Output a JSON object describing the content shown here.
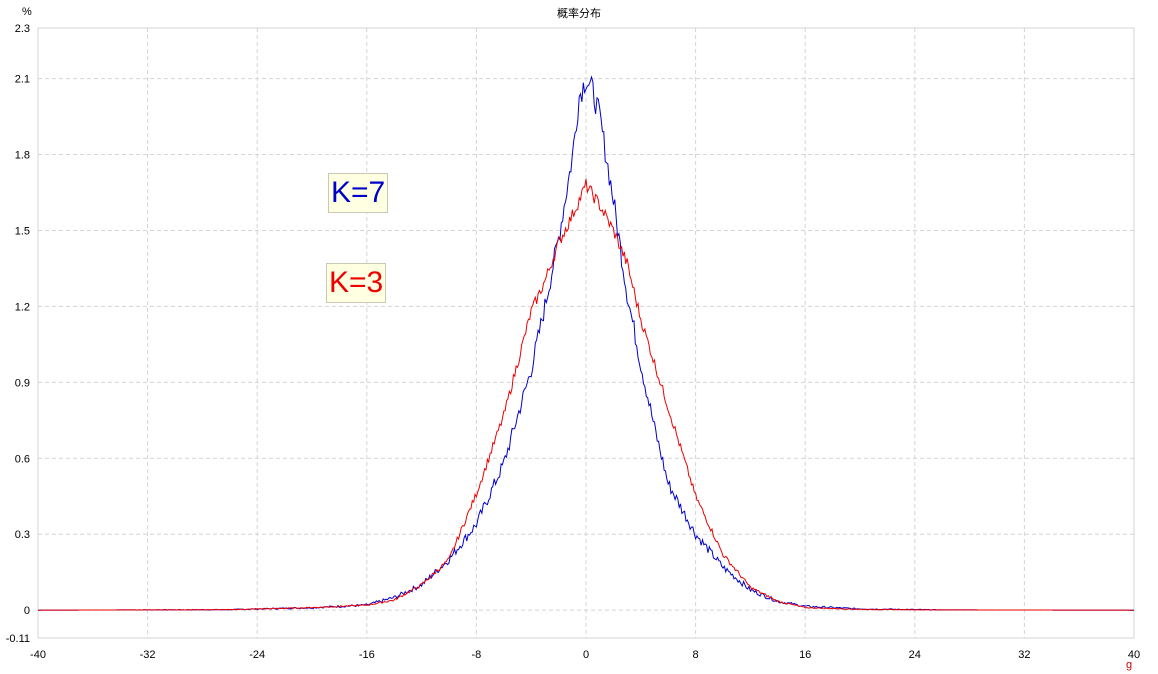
{
  "chart_data": {
    "type": "line",
    "title": "概率分布",
    "ylabel": "%",
    "xlabel": "g",
    "xlim": [
      -40,
      40
    ],
    "ylim": [
      -0.11,
      2.3
    ],
    "x_ticks": [
      "-40",
      "-32",
      "-24",
      "-16",
      "-8",
      "0",
      "8",
      "16",
      "24",
      "32",
      "40"
    ],
    "y_ticks": [
      "-0.11",
      "0",
      "0.3",
      "0.6",
      "0.9",
      "1.2",
      "1.5",
      "1.8",
      "2.1",
      "2.3"
    ],
    "grid": true,
    "series": [
      {
        "name": "K=7",
        "color": "#0000cc",
        "x": [
          -40,
          -26,
          -20,
          -16,
          -14,
          -12,
          -10,
          -8,
          -6,
          -4,
          -3,
          -2,
          -1,
          -0.5,
          0,
          0.5,
          1,
          2,
          3,
          4,
          5,
          6,
          8,
          10,
          12,
          14,
          16,
          20,
          26,
          40
        ],
        "y": [
          0,
          0.002,
          0.01,
          0.02,
          0.05,
          0.1,
          0.2,
          0.34,
          0.58,
          0.95,
          1.2,
          1.47,
          1.79,
          2.03,
          2.1,
          2.05,
          1.95,
          1.62,
          1.25,
          0.97,
          0.72,
          0.5,
          0.3,
          0.17,
          0.08,
          0.035,
          0.015,
          0.005,
          0.001,
          0
        ]
      },
      {
        "name": "K=3",
        "color": "#ee0000",
        "x": [
          -40,
          -26,
          -20,
          -16,
          -14,
          -12,
          -10,
          -8,
          -6,
          -4,
          -3,
          -2,
          -1,
          0,
          1,
          2,
          3,
          4,
          6,
          8,
          10,
          12,
          14,
          16,
          20,
          26,
          40
        ],
        "y": [
          0,
          0.002,
          0.01,
          0.02,
          0.04,
          0.1,
          0.2,
          0.46,
          0.77,
          1.18,
          1.3,
          1.45,
          1.56,
          1.68,
          1.6,
          1.5,
          1.37,
          1.15,
          0.8,
          0.45,
          0.22,
          0.09,
          0.035,
          0.01,
          0.003,
          0.001,
          0
        ]
      }
    ],
    "annotations": [
      {
        "text": "K=7",
        "color": "#0000cc"
      },
      {
        "text": "K=3",
        "color": "#ee0000"
      }
    ]
  }
}
